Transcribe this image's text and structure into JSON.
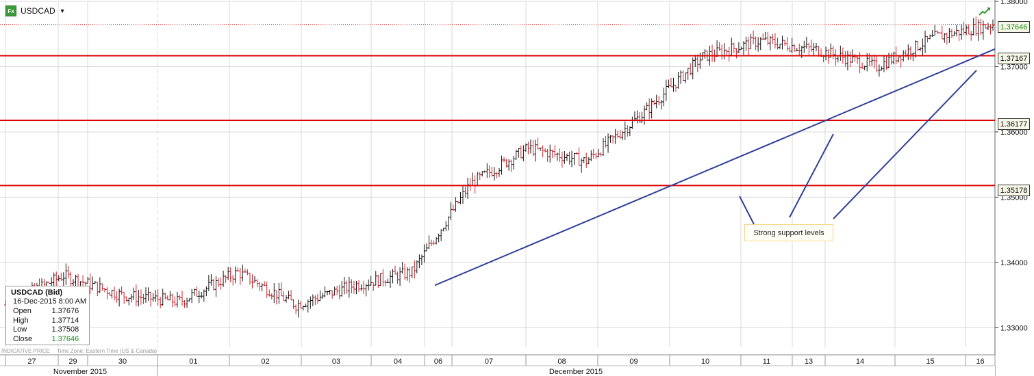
{
  "header": {
    "symbol": "USDCAD",
    "dropdown_icon": "chevron-down-icon",
    "fx_icon": "fx-icon",
    "fx_label": "Fx"
  },
  "info_box": {
    "title": "USDCAD (Bid)",
    "datetime": "16-Dec-2015 8:00 AM",
    "rows": [
      {
        "label": "Open",
        "value": "1.37676"
      },
      {
        "label": "High",
        "value": "1.37714"
      },
      {
        "label": "Low",
        "value": "1.37508"
      },
      {
        "label": "Close",
        "value": "1.37646"
      }
    ]
  },
  "footer": {
    "indicative": "INDICATIVE PRICE",
    "timezone": "Time Zone: Eastern Time (US & Canada)"
  },
  "annotation": {
    "text": "Strong support levels"
  },
  "price_tags": {
    "last": "1.37646",
    "levels": [
      "1.37167",
      "1.36177",
      "1.35178"
    ]
  },
  "colors": {
    "up": "#111111",
    "down": "#d0202a",
    "support": "#dd0000",
    "trendline": "#2f3f9a",
    "last_tag": "#1a8a1a",
    "grid": "#d8d8d8"
  },
  "chart_data": {
    "type": "bar",
    "title": "",
    "series_name": "USDCAD (Bid)",
    "ylim": [
      1.327,
      1.38
    ],
    "y_ticks": [
      "1.33000",
      "1.34000",
      "1.35000",
      "1.36000",
      "1.37000",
      "1.38000"
    ],
    "x_day_labels": [
      "27",
      "29",
      "30",
      "01",
      "02",
      "03",
      "04",
      "06",
      "07",
      "08",
      "09",
      "10",
      "11",
      "13",
      "14",
      "15",
      "16"
    ],
    "x_month_labels": [
      "November 2015",
      "December 2015"
    ],
    "support_levels": [
      1.37167,
      1.36177,
      1.35178
    ],
    "last_price": 1.37646,
    "trendline": {
      "start": {
        "date": "04-Dec-2015",
        "price": 1.3365
      },
      "end": {
        "date": "16-Dec-2015",
        "price": 1.3727
      }
    },
    "bars_per_day": 24,
    "day_anchors": [
      {
        "day": "27",
        "price": 1.3335
      },
      {
        "day": "29",
        "price": 1.338
      },
      {
        "day": "30",
        "price": 1.335
      },
      {
        "day": "01",
        "price": 1.334
      },
      {
        "day": "02",
        "price": 1.3385
      },
      {
        "day": "03",
        "price": 1.3335
      },
      {
        "day": "04",
        "price": 1.3365
      },
      {
        "day": "06",
        "price": 1.3385
      },
      {
        "day": "07",
        "price": 1.352
      },
      {
        "day": "08",
        "price": 1.3575
      },
      {
        "day": "09",
        "price": 1.3555
      },
      {
        "day": "10",
        "price": 1.363
      },
      {
        "day": "11",
        "price": 1.3715
      },
      {
        "day": "13",
        "price": 1.374
      },
      {
        "day": "14",
        "price": 1.3725
      },
      {
        "day": "15",
        "price": 1.37
      },
      {
        "day": "16",
        "price": 1.3745
      },
      {
        "day": "16",
        "price": 1.3765
      }
    ],
    "info": {
      "open": 1.37676,
      "high": 1.37714,
      "low": 1.37508,
      "close": 1.37646
    }
  }
}
